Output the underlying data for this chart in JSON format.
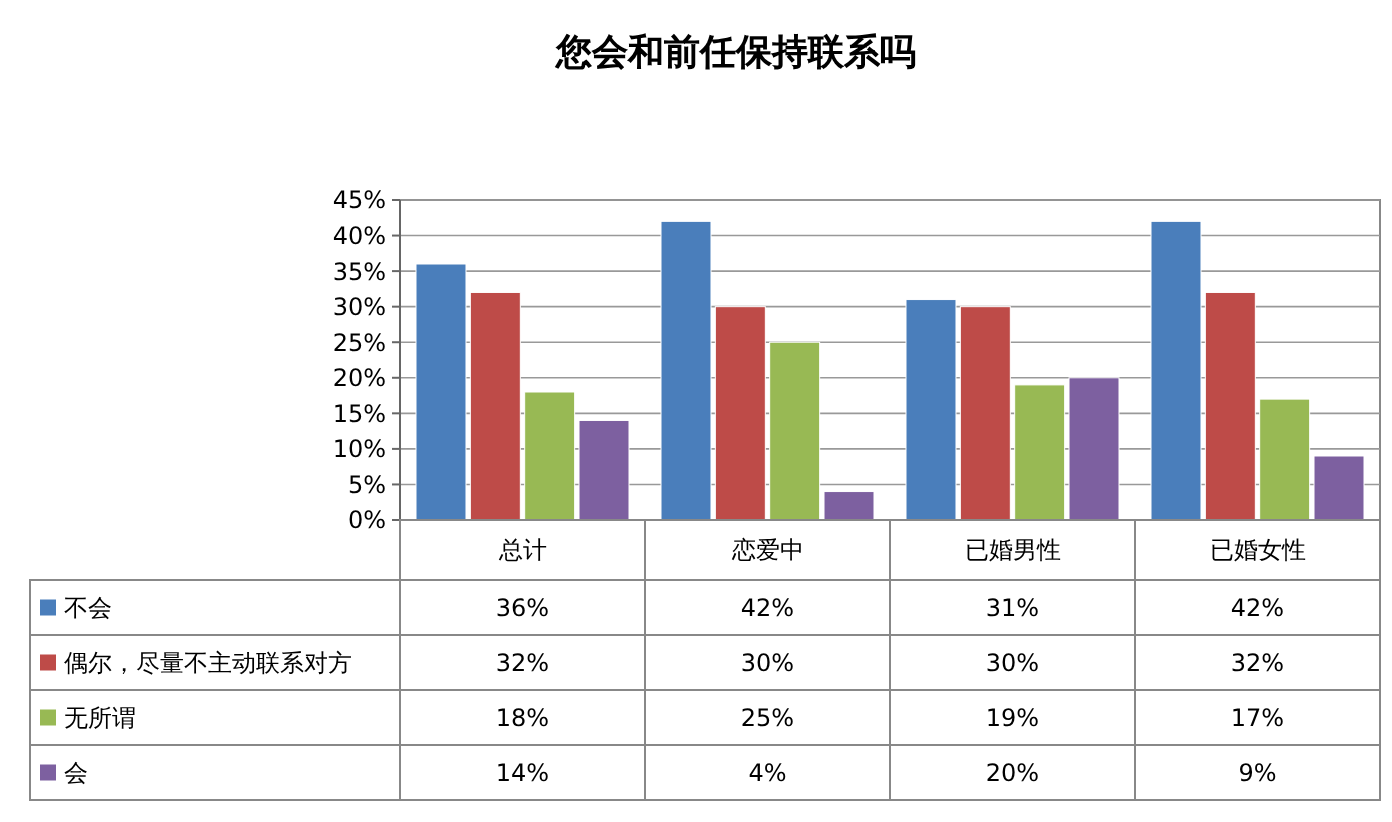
{
  "chart_data": {
    "type": "bar",
    "title": "您会和前任保持联系吗",
    "categories": [
      "总计",
      "恋爱中",
      "已婚男性",
      "已婚女性"
    ],
    "series": [
      {
        "name": "不会",
        "color": "#4a7ebb",
        "values": [
          36,
          42,
          31,
          42
        ],
        "value_labels": [
          "36%",
          "42%",
          "31%",
          "42%"
        ]
      },
      {
        "name": "偶尔，尽量不主动联系对方",
        "color": "#be4b48",
        "values": [
          32,
          30,
          30,
          32
        ],
        "value_labels": [
          "32%",
          "30%",
          "30%",
          "32%"
        ]
      },
      {
        "name": "无所谓",
        "color": "#98b954",
        "values": [
          18,
          25,
          19,
          17
        ],
        "value_labels": [
          "18%",
          "25%",
          "19%",
          "17%"
        ]
      },
      {
        "name": "会",
        "color": "#7d60a0",
        "values": [
          14,
          4,
          20,
          9
        ],
        "value_labels": [
          "14%",
          "4%",
          "20%",
          "9%"
        ]
      }
    ],
    "ylim": [
      0,
      45
    ],
    "yticks": [
      {
        "value": 0,
        "label": "0%"
      },
      {
        "value": 5,
        "label": "5%"
      },
      {
        "value": 10,
        "label": "10%"
      },
      {
        "value": 15,
        "label": "15%"
      },
      {
        "value": 20,
        "label": "20%"
      },
      {
        "value": 25,
        "label": "25%"
      },
      {
        "value": 30,
        "label": "30%"
      },
      {
        "value": 35,
        "label": "35%"
      },
      {
        "value": 40,
        "label": "40%"
      },
      {
        "value": 45,
        "label": "45%"
      }
    ],
    "grid": "y",
    "legend": "bottom"
  }
}
